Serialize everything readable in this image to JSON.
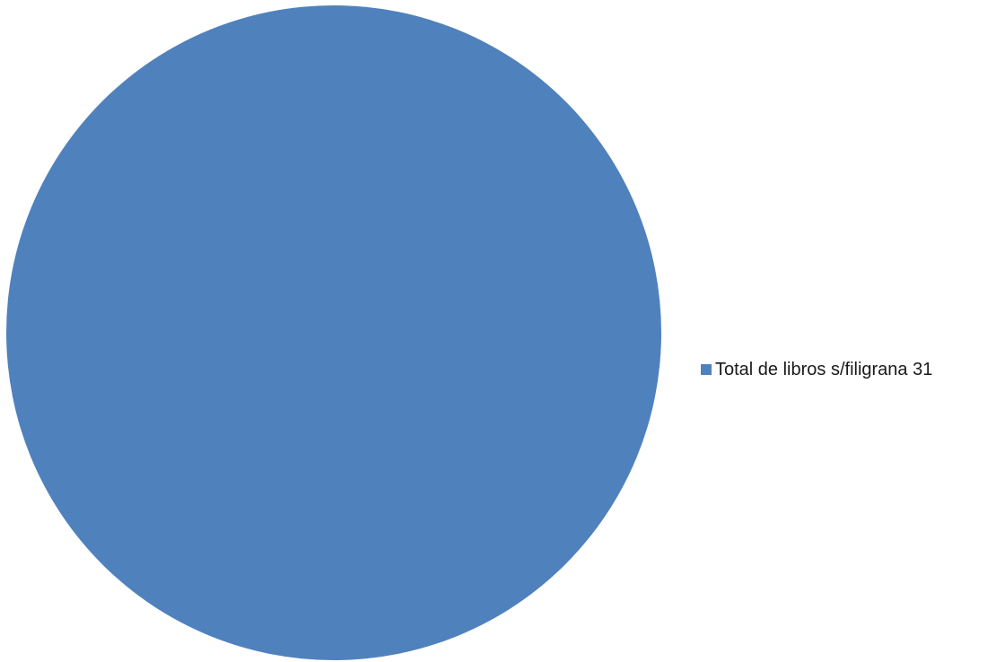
{
  "chart_data": {
    "type": "pie",
    "title": "",
    "slices": [
      {
        "label": "Total de libros s/filigrana 31",
        "value": 31,
        "color": "#4f81bd"
      }
    ],
    "legend": {
      "placement": "right",
      "items": [
        "Total de libros s/filigrana 31"
      ]
    }
  }
}
